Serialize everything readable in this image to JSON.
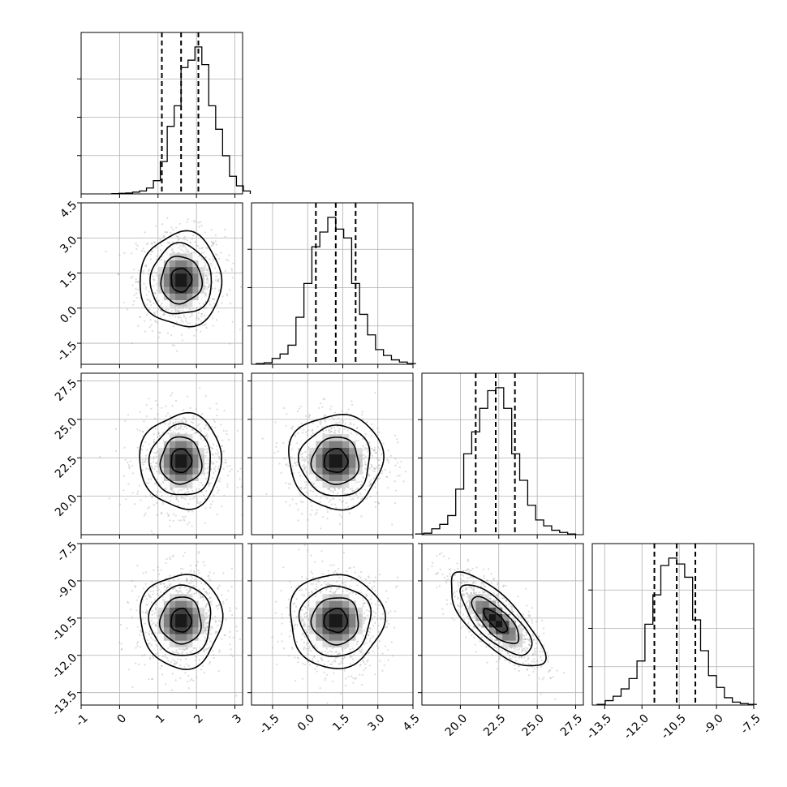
{
  "chart_data": {
    "type": "corner",
    "grid": true,
    "parameters": [
      {
        "mean": 1.6,
        "sd": 0.45,
        "range": [
          -1,
          3.2
        ],
        "ticks": [
          "-1",
          "0",
          "1",
          "2",
          "3"
        ],
        "tick_values": [
          -1,
          0,
          1,
          2,
          3
        ],
        "quantiles": [
          1.1,
          1.6,
          2.05
        ],
        "hist_bins": [
          0.002,
          0.004,
          0.006,
          0.012,
          0.02,
          0.04,
          0.09,
          0.22,
          0.46,
          0.6,
          0.86,
          0.91,
          1.0,
          0.88,
          0.6,
          0.44,
          0.26,
          0.12,
          0.055,
          0.02
        ]
      },
      {
        "mean": 1.2,
        "sd": 0.85,
        "range": [
          -2.4,
          4.5
        ],
        "ticks": [
          "-1.5",
          "0.0",
          "1.5",
          "3.0",
          "4.5"
        ],
        "tick_values": [
          -1.5,
          0.0,
          1.5,
          3.0,
          4.5
        ],
        "quantiles": [
          0.35,
          1.2,
          2.05
        ],
        "hist_bins": [
          0.005,
          0.01,
          0.04,
          0.07,
          0.13,
          0.32,
          0.55,
          0.8,
          0.9,
          1.0,
          0.92,
          0.86,
          0.55,
          0.34,
          0.2,
          0.1,
          0.06,
          0.03,
          0.015,
          0.005
        ]
      },
      {
        "mean": 22.3,
        "sd": 1.3,
        "range": [
          17.5,
          28.0
        ],
        "ticks": [
          "20.0",
          "22.5",
          "25.0",
          "27.5"
        ],
        "tick_values": [
          20.0,
          22.5,
          25.0,
          27.5
        ],
        "quantiles": [
          21.0,
          22.3,
          23.55
        ],
        "hist_bins": [
          0.005,
          0.01,
          0.04,
          0.07,
          0.13,
          0.31,
          0.55,
          0.7,
          0.86,
          0.98,
          1.0,
          0.86,
          0.55,
          0.37,
          0.2,
          0.1,
          0.06,
          0.03,
          0.015,
          0.005
        ]
      },
      {
        "mean": -10.6,
        "sd": 0.8,
        "range": [
          -14.0,
          -7.5
        ],
        "ticks": [
          "-13.5",
          "-12.0",
          "-10.5",
          "-9.0",
          "-7.5"
        ],
        "tick_values": [
          -13.5,
          -12.0,
          -10.5,
          -9.0,
          -7.5
        ],
        "quantiles": [
          -11.5,
          -10.6,
          -9.85
        ],
        "hist_bins": [
          0.005,
          0.03,
          0.06,
          0.11,
          0.18,
          0.3,
          0.55,
          0.75,
          0.95,
          1.0,
          0.96,
          0.87,
          0.58,
          0.37,
          0.2,
          0.12,
          0.05,
          0.02,
          0.01,
          0.005
        ]
      }
    ],
    "correlations": {
      "1-0": 0.0,
      "2-0": 0.0,
      "2-1": 0.0,
      "3-0": 0.0,
      "3-1": 0.0,
      "3-2": -0.75
    },
    "contour_levels_sigma": [
      0.5,
      1.0,
      1.5,
      2.0
    ]
  }
}
